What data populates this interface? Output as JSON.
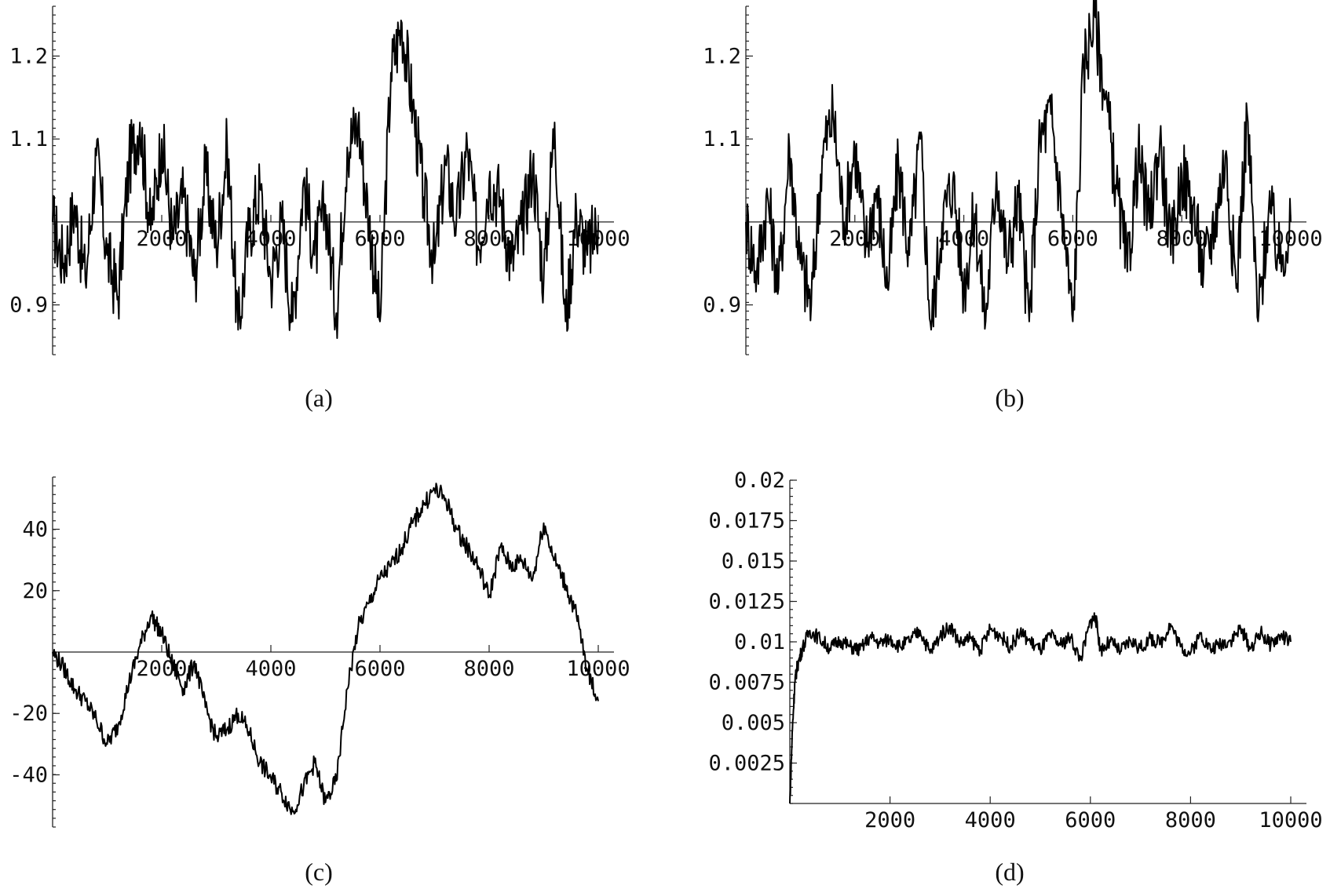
{
  "chart_data": [
    {
      "panel": "a",
      "type": "line",
      "caption": "(a)",
      "xlim": [
        0,
        10000
      ],
      "ylim": [
        0.84,
        1.26
      ],
      "x_axis_at": 1.0,
      "x_ticks": [
        2000,
        4000,
        6000,
        8000,
        10000
      ],
      "x_tick_labels": [
        "2000",
        "4000",
        "6000",
        "8000",
        "10000"
      ],
      "y_ticks": [
        0.9,
        1.1,
        1.2
      ],
      "y_tick_labels": [
        "0.9",
        "1.1",
        "1.2"
      ],
      "grid": false,
      "series": [
        {
          "x": [
            0,
            200,
            400,
            600,
            800,
            1000,
            1200,
            1400,
            1600,
            1800,
            2000,
            2200,
            2400,
            2600,
            2800,
            3000,
            3200,
            3400,
            3600,
            3800,
            4000,
            4200,
            4400,
            4600,
            4800,
            5000,
            5200,
            5400,
            5600,
            5800,
            6000,
            6200,
            6400,
            6600,
            6800,
            7000,
            7200,
            7400,
            7600,
            7800,
            8000,
            8200,
            8400,
            8600,
            8800,
            9000,
            9200,
            9400,
            9600,
            9800,
            10000
          ],
          "y": [
            1.0,
            0.95,
            1.02,
            0.93,
            1.08,
            0.96,
            0.91,
            1.07,
            1.12,
            0.99,
            1.1,
            0.98,
            1.03,
            0.93,
            1.06,
            0.97,
            1.09,
            0.87,
            0.99,
            1.04,
            0.93,
            1.0,
            0.88,
            1.05,
            0.96,
            1.02,
            0.89,
            1.09,
            1.12,
            1.0,
            0.88,
            1.18,
            1.24,
            1.14,
            1.03,
            0.95,
            1.07,
            1.0,
            1.09,
            0.97,
            1.05,
            1.03,
            0.95,
            0.99,
            1.07,
            0.93,
            1.12,
            0.88,
            1.01,
            0.96,
            1.0
          ]
        }
      ]
    },
    {
      "panel": "b",
      "type": "line",
      "caption": "(b)",
      "xlim": [
        0,
        10000
      ],
      "ylim": [
        0.84,
        1.26
      ],
      "x_axis_at": 1.0,
      "x_ticks": [
        2000,
        4000,
        6000,
        8000,
        10000
      ],
      "x_tick_labels": [
        "2000",
        "4000",
        "6000",
        "8000",
        "10000"
      ],
      "y_ticks": [
        0.9,
        1.1,
        1.2
      ],
      "y_tick_labels": [
        "0.9",
        "1.1",
        "1.2"
      ],
      "grid": false,
      "series": [
        {
          "x": [
            0,
            200,
            400,
            600,
            800,
            1000,
            1200,
            1400,
            1600,
            1800,
            2000,
            2200,
            2400,
            2600,
            2800,
            3000,
            3200,
            3400,
            3600,
            3800,
            4000,
            4200,
            4400,
            4600,
            4800,
            5000,
            5200,
            5400,
            5600,
            5800,
            6000,
            6200,
            6400,
            6600,
            6800,
            7000,
            7200,
            7400,
            7600,
            7800,
            8000,
            8200,
            8400,
            8600,
            8800,
            9000,
            9200,
            9400,
            9600,
            9800,
            10000
          ],
          "y": [
            1.0,
            0.94,
            1.03,
            0.92,
            1.09,
            0.95,
            0.9,
            1.08,
            1.13,
            1.0,
            1.09,
            0.97,
            1.04,
            0.92,
            1.07,
            0.96,
            1.1,
            0.87,
            1.0,
            1.05,
            0.92,
            1.01,
            0.88,
            1.06,
            0.95,
            1.03,
            0.88,
            1.1,
            1.13,
            1.01,
            0.88,
            1.19,
            1.25,
            1.15,
            1.04,
            0.94,
            1.08,
            1.0,
            1.1,
            0.96,
            1.06,
            1.02,
            0.94,
            1.0,
            1.08,
            0.92,
            1.13,
            0.88,
            1.02,
            0.95,
            1.0
          ]
        }
      ]
    },
    {
      "panel": "c",
      "type": "line",
      "caption": "(c)",
      "xlim": [
        0,
        10000
      ],
      "ylim": [
        -57,
        57
      ],
      "x_axis_at": 0,
      "x_ticks": [
        2000,
        4000,
        6000,
        8000,
        10000
      ],
      "x_tick_labels": [
        "2000",
        "4000",
        "6000",
        "8000",
        "10000"
      ],
      "y_ticks": [
        -40,
        -20,
        20,
        40
      ],
      "y_tick_labels": [
        "-40",
        "-20",
        "20",
        "40"
      ],
      "grid": false,
      "series": [
        {
          "x": [
            0,
            200,
            400,
            600,
            800,
            1000,
            1200,
            1400,
            1600,
            1800,
            2000,
            2200,
            2400,
            2600,
            2800,
            3000,
            3200,
            3400,
            3600,
            3800,
            4000,
            4200,
            4400,
            4600,
            4800,
            5000,
            5200,
            5400,
            5600,
            5800,
            6000,
            6200,
            6400,
            6600,
            6800,
            7000,
            7200,
            7400,
            7600,
            7800,
            8000,
            8200,
            8400,
            8600,
            8800,
            9000,
            9200,
            9400,
            9600,
            9800,
            10000
          ],
          "y": [
            0,
            -5,
            -12,
            -16,
            -22,
            -30,
            -24,
            -10,
            2,
            12,
            6,
            -4,
            -12,
            -3,
            -18,
            -28,
            -25,
            -20,
            -26,
            -36,
            -41,
            -46,
            -52,
            -44,
            -36,
            -49,
            -42,
            -12,
            8,
            16,
            24,
            28,
            34,
            42,
            48,
            53,
            50,
            40,
            34,
            28,
            18,
            34,
            28,
            30,
            24,
            42,
            30,
            22,
            12,
            -6,
            -16
          ]
        }
      ]
    },
    {
      "panel": "d",
      "type": "line",
      "caption": "(d)",
      "xlim": [
        0,
        10000
      ],
      "ylim": [
        0,
        0.02
      ],
      "x_axis_at": 0,
      "x_ticks": [
        2000,
        4000,
        6000,
        8000,
        10000
      ],
      "x_tick_labels": [
        "2000",
        "4000",
        "6000",
        "8000",
        "10000"
      ],
      "y_ticks": [
        0.0025,
        0.005,
        0.0075,
        0.01,
        0.0125,
        0.015,
        0.0175,
        0.02
      ],
      "y_tick_labels": [
        "0.0025",
        "0.005",
        "0.0075",
        "0.01",
        "0.0125",
        "0.015",
        "0.0175",
        "0.02"
      ],
      "grid": false,
      "series": [
        {
          "x": [
            0,
            50,
            100,
            150,
            250,
            400,
            600,
            800,
            1000,
            1200,
            1400,
            1600,
            1800,
            2000,
            2200,
            2400,
            2600,
            2800,
            3000,
            3200,
            3400,
            3600,
            3800,
            4000,
            4200,
            4400,
            4600,
            4800,
            5000,
            5200,
            5400,
            5600,
            5800,
            6000,
            6100,
            6200,
            6400,
            6600,
            6800,
            7000,
            7200,
            7400,
            7600,
            7800,
            8000,
            8200,
            8400,
            8600,
            8800,
            9000,
            9200,
            9400,
            9600,
            9800,
            10000
          ],
          "y": [
            0,
            0.0045,
            0.0075,
            0.0085,
            0.0096,
            0.0107,
            0.0102,
            0.0096,
            0.0101,
            0.0097,
            0.0095,
            0.0103,
            0.0099,
            0.0102,
            0.0097,
            0.0101,
            0.0107,
            0.0093,
            0.0104,
            0.011,
            0.0099,
            0.0102,
            0.0095,
            0.0108,
            0.0104,
            0.0097,
            0.0106,
            0.01,
            0.0095,
            0.0104,
            0.0098,
            0.0103,
            0.0089,
            0.0112,
            0.0116,
            0.0095,
            0.01,
            0.0094,
            0.0101,
            0.0096,
            0.0102,
            0.0099,
            0.0111,
            0.0097,
            0.0093,
            0.0105,
            0.0095,
            0.0099,
            0.0101,
            0.0108,
            0.0096,
            0.0106,
            0.0098,
            0.0104,
            0.01
          ]
        }
      ]
    }
  ]
}
